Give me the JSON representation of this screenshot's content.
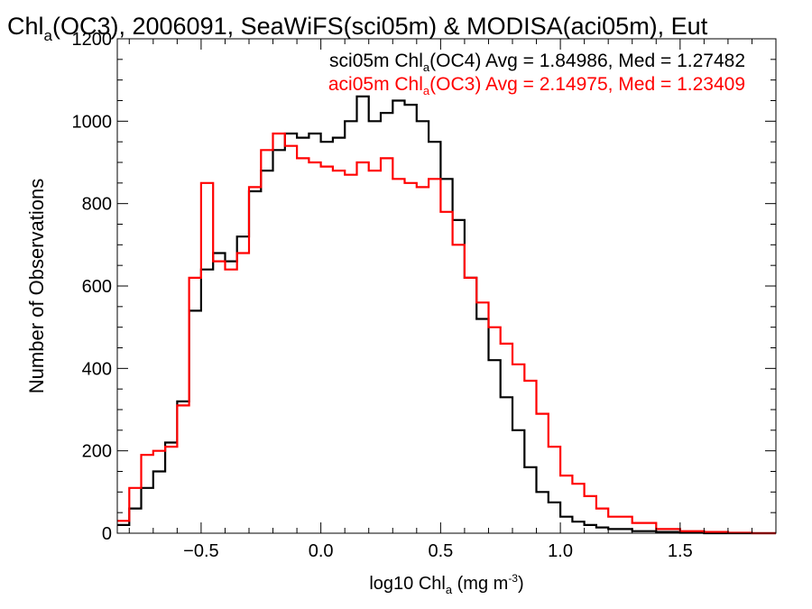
{
  "chart_data": {
    "type": "line",
    "title": "Chl_a(OC3), 2006091, SeaWiFS(sci05m) & MODISA(aci05m), Eut",
    "title_parts": {
      "pre": "Chl",
      "sub": "a",
      "post": "(OC3), 2006091, SeaWiFS(sci05m) & MODISA(aci05m), Eut"
    },
    "xlabel": "log10 Chl_a (mg m^-3)",
    "xlabel_parts": {
      "pre": "log10 Chl",
      "sub": "a",
      "mid": " (mg m",
      "sup": "-3",
      "post": ")"
    },
    "ylabel": "Number of Observations",
    "xlim": [
      -0.85,
      1.9
    ],
    "ylim": [
      0,
      1200
    ],
    "xticks": [
      -0.5,
      0.0,
      0.5,
      1.0,
      1.5
    ],
    "xtick_labels": [
      "−0.5",
      "0.0",
      "0.5",
      "1.0",
      "1.5"
    ],
    "yticks": [
      0,
      200,
      400,
      600,
      800,
      1000,
      1200
    ],
    "ytick_labels": [
      "0",
      "200",
      "400",
      "600",
      "800",
      "1000",
      "1200"
    ],
    "grid": false,
    "legend": [
      {
        "pre": "sci05m Chl",
        "sub": "a",
        "post": "(OC4) Avg = 1.84986, Med = 1.27482",
        "color": "#000000"
      },
      {
        "pre": "aci05m Chl",
        "sub": "a",
        "post": "(OC3) Avg = 2.14975, Med = 1.23409",
        "color": "#ff0000"
      }
    ],
    "series": [
      {
        "name": "sci05m Chl_a(OC4)",
        "color": "#000000",
        "x": [
          -0.85,
          -0.8,
          -0.75,
          -0.7,
          -0.65,
          -0.6,
          -0.55,
          -0.5,
          -0.45,
          -0.4,
          -0.35,
          -0.3,
          -0.25,
          -0.2,
          -0.15,
          -0.1,
          -0.05,
          0.0,
          0.05,
          0.1,
          0.15,
          0.2,
          0.25,
          0.3,
          0.35,
          0.4,
          0.45,
          0.5,
          0.55,
          0.6,
          0.65,
          0.7,
          0.75,
          0.8,
          0.85,
          0.9,
          0.95,
          1.0,
          1.05,
          1.1,
          1.15,
          1.2,
          1.3,
          1.4,
          1.5,
          1.6,
          1.7,
          1.8,
          1.9
        ],
        "y": [
          20,
          60,
          110,
          150,
          220,
          320,
          540,
          640,
          680,
          660,
          720,
          830,
          880,
          930,
          970,
          960,
          970,
          950,
          960,
          1000,
          1060,
          1000,
          1020,
          1050,
          1040,
          1000,
          950,
          860,
          760,
          620,
          520,
          420,
          330,
          250,
          160,
          100,
          75,
          40,
          28,
          20,
          14,
          10,
          5,
          3,
          1,
          0,
          0,
          0,
          0
        ]
      },
      {
        "name": "aci05m Chl_a(OC3)",
        "color": "#ff0000",
        "x": [
          -0.85,
          -0.8,
          -0.75,
          -0.7,
          -0.65,
          -0.6,
          -0.55,
          -0.5,
          -0.45,
          -0.4,
          -0.35,
          -0.3,
          -0.25,
          -0.2,
          -0.15,
          -0.1,
          -0.05,
          0.0,
          0.05,
          0.1,
          0.15,
          0.2,
          0.25,
          0.3,
          0.35,
          0.4,
          0.45,
          0.5,
          0.55,
          0.6,
          0.65,
          0.7,
          0.75,
          0.8,
          0.85,
          0.9,
          0.95,
          1.0,
          1.05,
          1.1,
          1.15,
          1.2,
          1.3,
          1.4,
          1.5,
          1.6,
          1.7,
          1.8,
          1.9
        ],
        "y": [
          30,
          110,
          190,
          200,
          210,
          310,
          620,
          850,
          660,
          640,
          680,
          840,
          930,
          970,
          940,
          910,
          900,
          890,
          880,
          870,
          900,
          880,
          910,
          860,
          850,
          840,
          860,
          780,
          700,
          620,
          560,
          500,
          460,
          410,
          370,
          290,
          210,
          140,
          120,
          90,
          60,
          40,
          25,
          10,
          5,
          3,
          1,
          0,
          0
        ]
      }
    ]
  }
}
